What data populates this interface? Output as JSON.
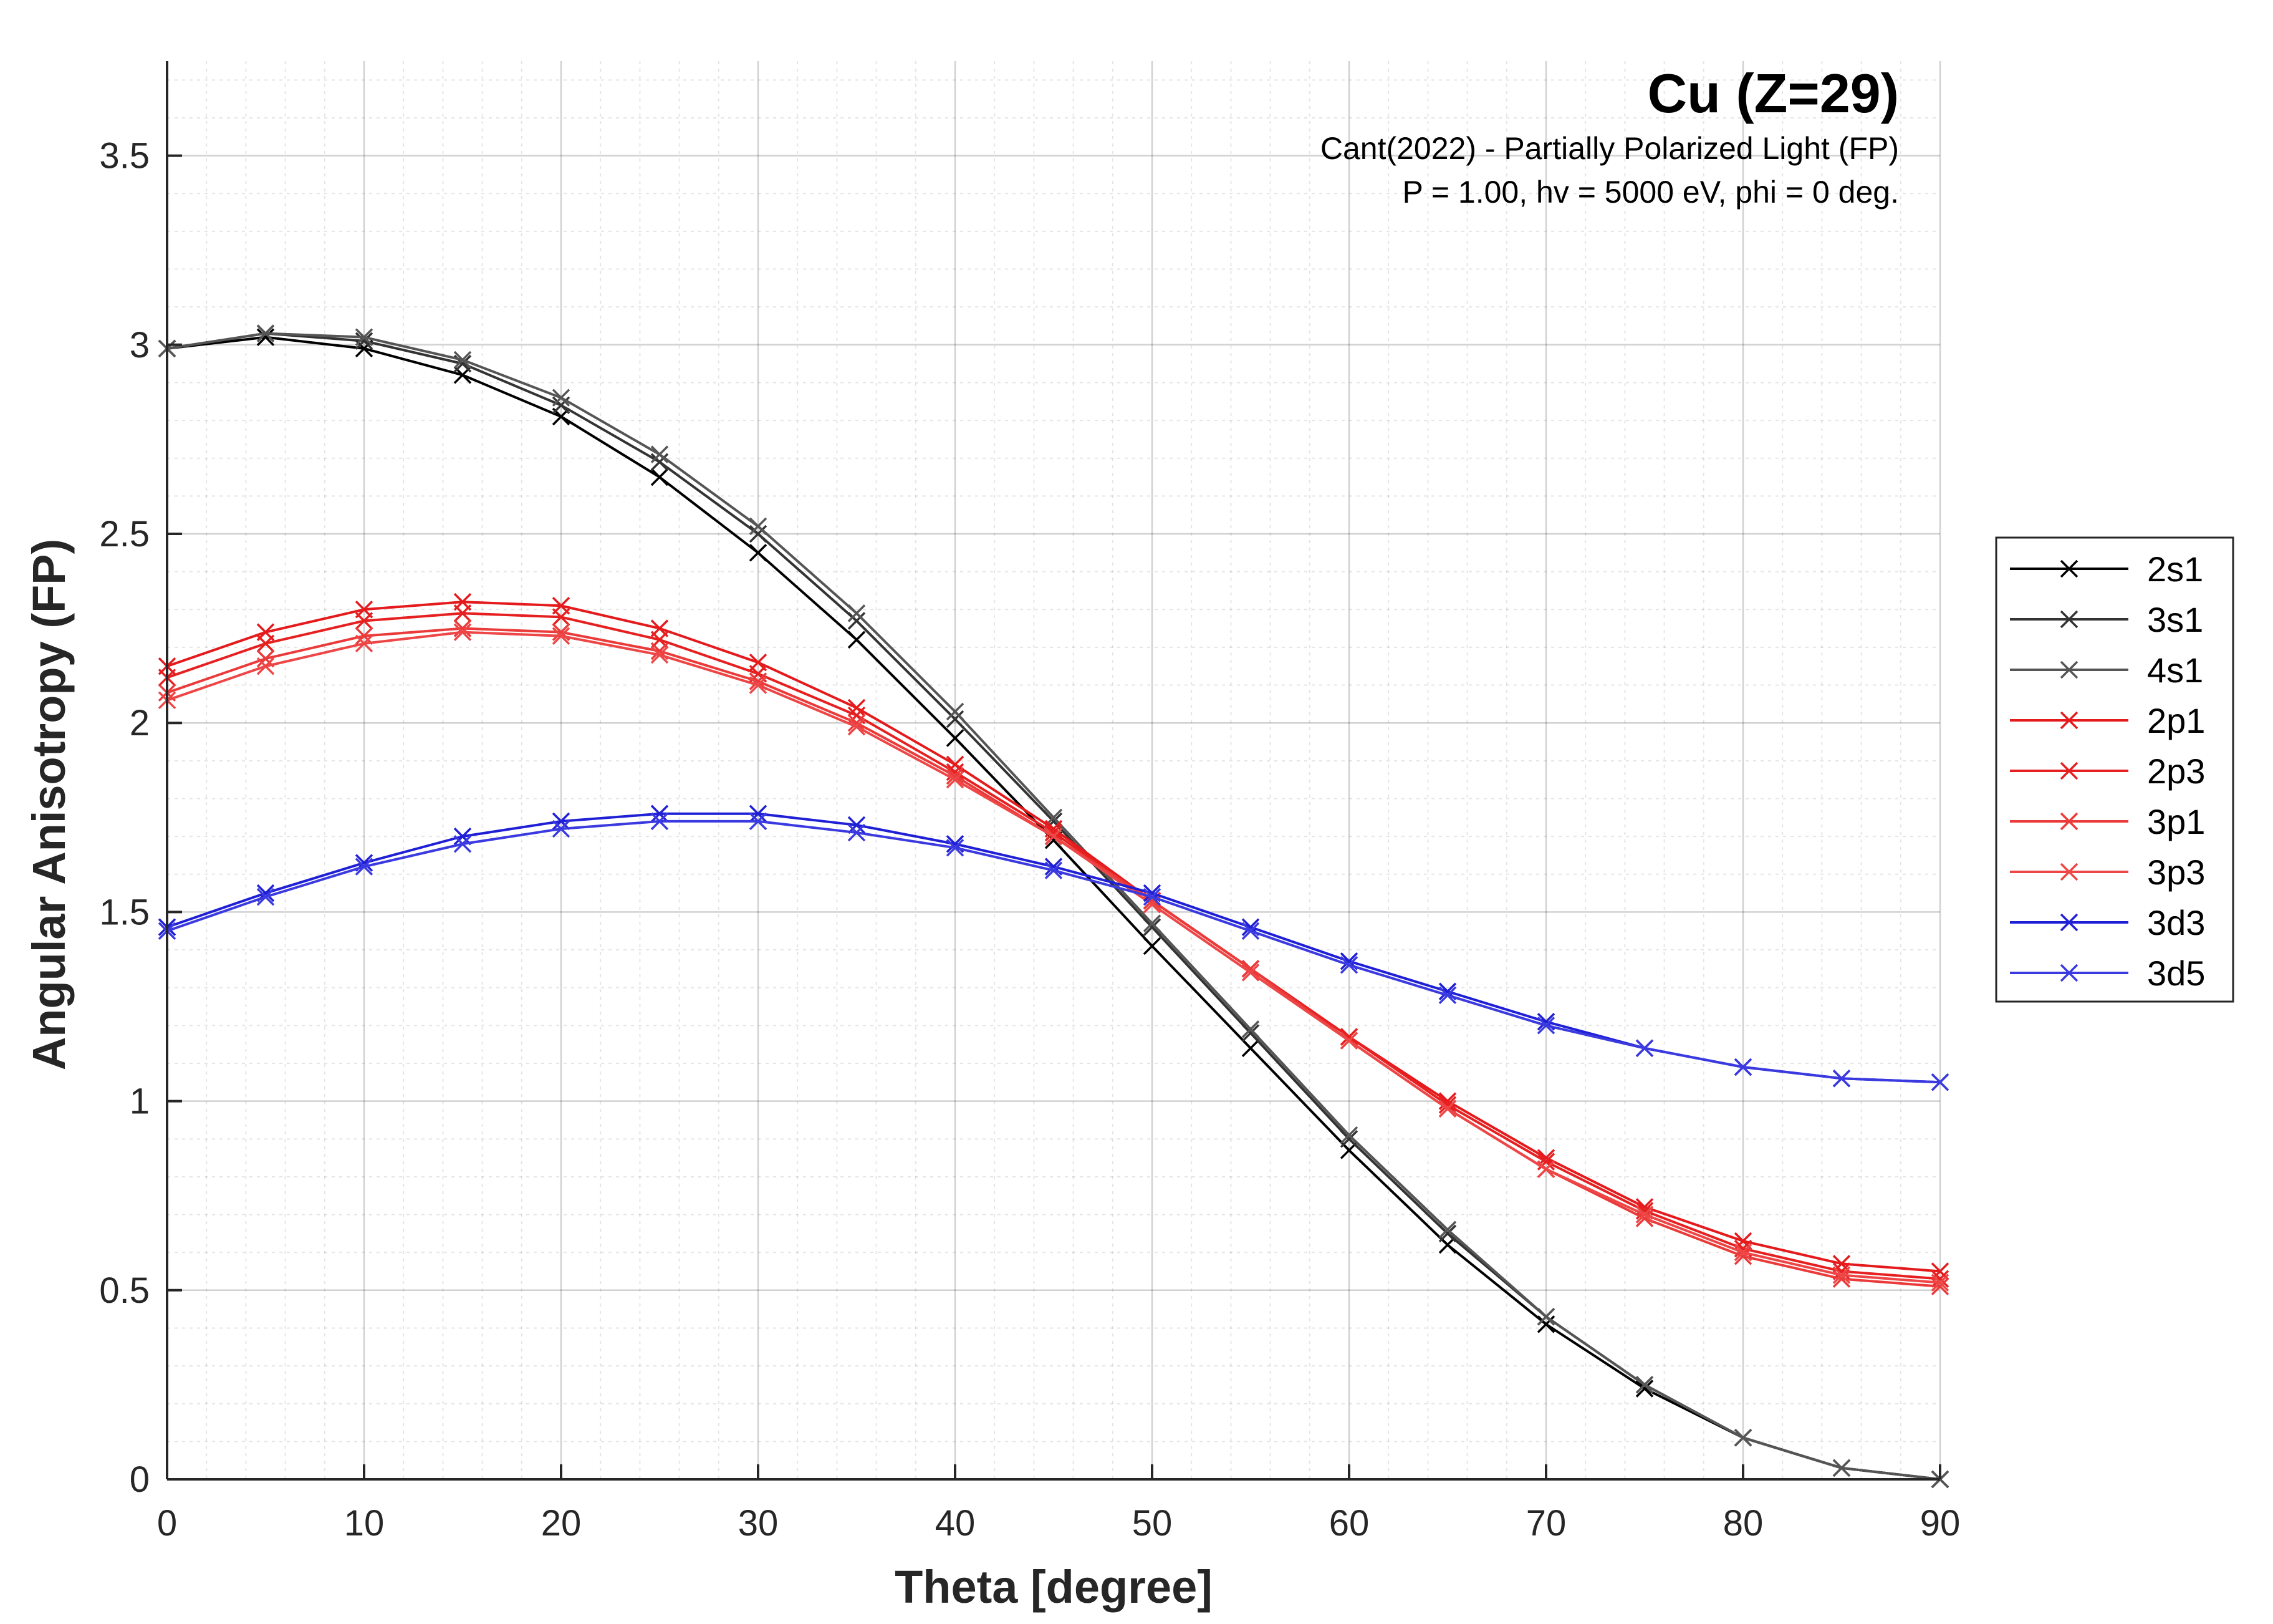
{
  "chart_data": {
    "type": "line",
    "title": "Cu (Z=29)",
    "subtitle": [
      "Cant(2022) - Partially Polarized Light (FP)",
      "P = 1.00, hv = 5000 eV, phi = 0 deg."
    ],
    "xlabel": "Theta [degree]",
    "ylabel": "Angular Anisotropy (FP)",
    "xlim": [
      0,
      90
    ],
    "ylim": [
      0,
      3.75
    ],
    "xticks": [
      0,
      10,
      20,
      30,
      40,
      50,
      60,
      70,
      80,
      90
    ],
    "yticks": [
      0,
      0.5,
      1,
      1.5,
      2,
      2.5,
      3,
      3.5
    ],
    "xtick_labels": [
      "0",
      "10",
      "20",
      "30",
      "40",
      "50",
      "60",
      "70",
      "80",
      "90"
    ],
    "ytick_labels": [
      "0",
      "0.5",
      "1",
      "1.5",
      "2",
      "2.5",
      "3",
      "3.5"
    ],
    "grid": true,
    "minor_grid": true,
    "legend_position": "outside-right",
    "marker": "x",
    "x": [
      0,
      5,
      10,
      15,
      20,
      25,
      30,
      35,
      40,
      45,
      50,
      55,
      60,
      65,
      70,
      75,
      80,
      85,
      90
    ],
    "series": [
      {
        "name": "2s1",
        "color": "#000000",
        "values": [
          2.99,
          3.02,
          2.99,
          2.92,
          2.81,
          2.65,
          2.45,
          2.22,
          1.96,
          1.69,
          1.41,
          1.14,
          0.87,
          0.62,
          0.41,
          0.24,
          0.11,
          0.03,
          0.0
        ]
      },
      {
        "name": "3s1",
        "color": "#333333",
        "values": [
          2.99,
          3.03,
          3.01,
          2.95,
          2.84,
          2.69,
          2.5,
          2.27,
          2.01,
          1.74,
          1.46,
          1.18,
          0.9,
          0.65,
          0.43,
          0.25,
          0.11,
          0.03,
          0.0
        ]
      },
      {
        "name": "4s1",
        "color": "#555555",
        "values": [
          2.99,
          3.03,
          3.02,
          2.96,
          2.86,
          2.71,
          2.52,
          2.29,
          2.03,
          1.75,
          1.47,
          1.19,
          0.91,
          0.66,
          0.43,
          0.25,
          0.11,
          0.03,
          0.0
        ]
      },
      {
        "name": "2p1",
        "color": "#e41a1c",
        "values": [
          2.15,
          2.24,
          2.3,
          2.32,
          2.31,
          2.25,
          2.16,
          2.04,
          1.89,
          1.72,
          1.53,
          1.35,
          1.17,
          1.0,
          0.85,
          0.72,
          0.63,
          0.57,
          0.55
        ]
      },
      {
        "name": "2p3",
        "color": "#e62020",
        "values": [
          2.12,
          2.21,
          2.27,
          2.29,
          2.28,
          2.22,
          2.13,
          2.02,
          1.87,
          1.71,
          1.53,
          1.35,
          1.17,
          0.99,
          0.84,
          0.71,
          0.61,
          0.55,
          0.53
        ]
      },
      {
        "name": "3p1",
        "color": "#ea3a3a",
        "values": [
          2.08,
          2.17,
          2.23,
          2.25,
          2.24,
          2.19,
          2.11,
          2.0,
          1.86,
          1.7,
          1.53,
          1.35,
          1.16,
          0.98,
          0.82,
          0.69,
          0.59,
          0.53,
          0.51
        ]
      },
      {
        "name": "3p3",
        "color": "#ee4646",
        "values": [
          2.06,
          2.15,
          2.21,
          2.24,
          2.23,
          2.18,
          2.1,
          1.99,
          1.85,
          1.7,
          1.52,
          1.34,
          1.16,
          0.98,
          0.82,
          0.7,
          0.6,
          0.54,
          0.52
        ]
      },
      {
        "name": "3d3",
        "color": "#1f1fd6",
        "values": [
          1.46,
          1.55,
          1.63,
          1.7,
          1.74,
          1.76,
          1.76,
          1.73,
          1.68,
          1.62,
          1.55,
          1.46,
          1.37,
          1.29,
          1.21,
          1.14,
          1.09,
          1.06,
          1.05
        ]
      },
      {
        "name": "3d5",
        "color": "#3a3ae0",
        "values": [
          1.45,
          1.54,
          1.62,
          1.68,
          1.72,
          1.74,
          1.74,
          1.71,
          1.67,
          1.61,
          1.54,
          1.45,
          1.36,
          1.28,
          1.2,
          1.14,
          1.09,
          1.06,
          1.05
        ]
      }
    ]
  }
}
